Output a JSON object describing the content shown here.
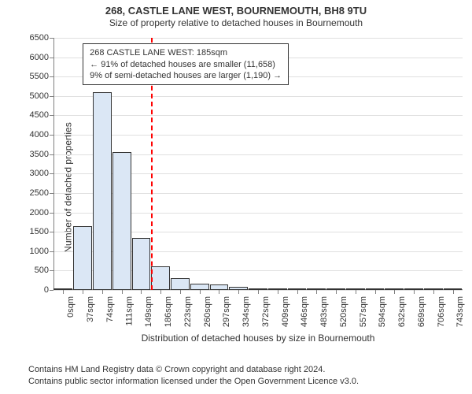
{
  "title_line1": "268, CASTLE LANE WEST, BOURNEMOUTH, BH8 9TU",
  "title_line2": "Size of property relative to detached houses in Bournemouth",
  "ylabel": "Number of detached properties",
  "xlabel": "Distribution of detached houses by size in Bournemouth",
  "footer_line1": "Contains HM Land Registry data © Crown copyright and database right 2024.",
  "footer_line2": "Contains public sector information licensed under the Open Government Licence v3.0.",
  "annotation": {
    "line1": "268 CASTLE LANE WEST: 185sqm",
    "line2": "← 91% of detached houses are smaller (11,658)",
    "line3": "9% of semi-detached houses are larger (1,190) →"
  },
  "chart": {
    "type": "histogram",
    "ylim": [
      0,
      6500
    ],
    "ytick_step": 500,
    "ytick_count": 14,
    "xtick_labels": [
      "0sqm",
      "37sqm",
      "74sqm",
      "111sqm",
      "149sqm",
      "186sqm",
      "223sqm",
      "260sqm",
      "297sqm",
      "334sqm",
      "372sqm",
      "409sqm",
      "446sqm",
      "483sqm",
      "520sqm",
      "557sqm",
      "594sqm",
      "632sqm",
      "669sqm",
      "706sqm",
      "743sqm"
    ],
    "values": [
      50,
      1650,
      5100,
      3550,
      1350,
      600,
      300,
      170,
      150,
      90,
      40,
      35,
      20,
      15,
      10,
      8,
      7,
      6,
      5,
      4,
      3
    ],
    "bar_fill": "#dbe7f5",
    "bar_stroke": "#333333",
    "grid_color": "#e0e0e0",
    "axis_color": "#808080",
    "background": "#ffffff",
    "title_fontsize": 13,
    "subtitle_fontsize": 12,
    "label_fontsize": 12,
    "tick_fontsize": 11,
    "refline_bin_index": 5,
    "refline_color": "#ff0000",
    "refline_dash": "4 4",
    "annotation_box_left_bin": 1.5,
    "annotation_box_top_value": 6350
  }
}
